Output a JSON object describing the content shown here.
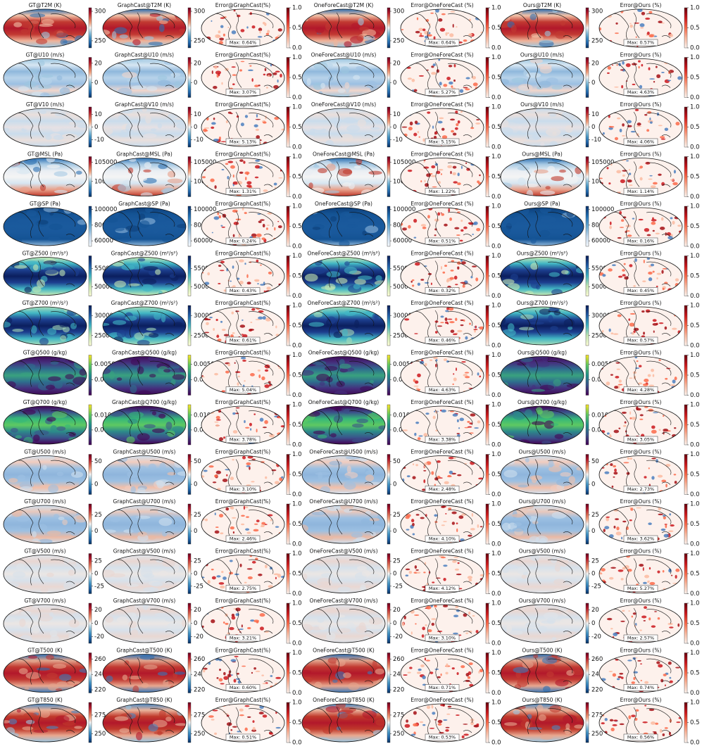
{
  "error_ticks": [
    {
      "value": 0,
      "label": "0.0"
    },
    0.5,
    {
      "value": 1,
      "label": "1.0"
    }
  ],
  "error_clim": [
    0,
    1
  ],
  "error_colormap": "Reds",
  "rows": [
    {
      "titles": [
        "GT@T2M (K)",
        "GraphCast@T2M (K)",
        "Error@GraphCast(%)",
        "OneForeCast@T2M (K)",
        "Error@OneForeCast (%)",
        "Ours@T2M (K)",
        "Error@Ours (%)"
      ],
      "colormap": "RdBu_r",
      "value_clim": [
        238,
        306
      ],
      "value_ticks": [
        250,
        300
      ],
      "max_errors": [
        "Max: 0.64%",
        "Max: 0.64%",
        "Max: 0.57%"
      ]
    },
    {
      "titles": [
        "GT@U10 (m/s)",
        "GraphCast@U10 (m/s)",
        "Error@GraphCast(%)",
        "OneForeCast@U10 (m/s)",
        "Error@OneForeCast (%)",
        "Ours@U10 (m/s)",
        "Error@Ours (%)"
      ],
      "colormap": "RdBu_r",
      "value_clim": [
        -15,
        26
      ],
      "value_ticks": [
        0,
        20
      ],
      "max_errors": [
        "Max: 3.07%",
        "Max: 5.27%",
        "Max: 4.63%"
      ]
    },
    {
      "titles": [
        "GT@V10 (m/s)",
        "GraphCast@V10 (m/s)",
        "Error@GraphCast(%)",
        "OneForeCast@V10 (m/s)",
        "Error@OneForeCast (%)",
        "Ours@V10 (m/s)",
        "Error@Ours (%)"
      ],
      "colormap": "RdBu_r",
      "value_clim": [
        -16,
        16
      ],
      "value_ticks": [
        -10,
        0,
        10
      ],
      "max_errors": [
        "Max: 5.13%",
        "Max: 5.15%",
        "Max: 4.06%"
      ]
    },
    {
      "titles": [
        "GT@MSL (Pa)",
        "GraphCast@MSL (Pa)",
        "Error@GraphCast(%)",
        "OneForeCast@MSL (Pa)",
        "Error@OneForeCast (%)",
        "Ours@MSL (Pa)",
        "Error@Ours (%)"
      ],
      "colormap": "RdBu_r",
      "value_clim": [
        96000,
        106500
      ],
      "value_ticks": [
        100000,
        105000
      ],
      "max_errors": [
        "Max: 1.31%",
        "Max: 1.22%",
        "Max: 1.14%"
      ]
    },
    {
      "titles": [
        "GT@SP (Pa)",
        "GraphCast@SP (Pa)",
        "Error@GraphCast(%)",
        "OneForeCast@SP (Pa)",
        "Error@OneForeCast (%)",
        "Ours@SP (Pa)",
        "Error@Ours (%)"
      ],
      "colormap": "Blues",
      "value_clim": [
        53000,
        104000
      ],
      "value_ticks": [
        60000,
        80000,
        100000
      ],
      "max_errors": [
        "Max: 0.24%",
        "Max: 0.51%",
        "Max: 0.16%"
      ]
    },
    {
      "titles": [
        "GT@Z500 (m²/s²)",
        "GraphCast@Z500 (m²/s²)",
        "Error@GraphCast(%)",
        "OneForeCast@Z500 (m²/s²)",
        "Error@OneForeCast (%)",
        "Ours@Z500 (m²/s²)",
        "Error@Ours (%)"
      ],
      "colormap": "YlGnBu",
      "value_clim": [
        47500,
        58500
      ],
      "value_ticks": [
        50000,
        55000
      ],
      "max_errors": [
        "Max: 0.43%",
        "Max: 0.32%",
        "Max: 0.45%"
      ]
    },
    {
      "titles": [
        "GT@Z700 (m²/s²)",
        "GraphCast@Z700 (m²/s²)",
        "Error@GraphCast(%)",
        "OneForeCast@Z700 (m²/s²)",
        "Error@OneForeCast (%)",
        "Ours@Z700 (m²/s²)",
        "Error@Ours (%)"
      ],
      "colormap": "YlGnBu",
      "value_clim": [
        22500,
        32500
      ],
      "value_ticks": [
        25000,
        30000
      ],
      "max_errors": [
        "Max: 0.61%",
        "Max: 0.46%",
        "Max: 0.57%"
      ]
    },
    {
      "titles": [
        "GT@Q500 (g/kg)",
        "GraphCast@Q500 (g/kg)",
        "Error@GraphCast(%)",
        "OneForeCast@Q500 (g/kg)",
        "Error@OneForeCast (%)",
        "Ours@Q500 (g/kg)",
        "Error@Ours (%)"
      ],
      "colormap": "viridis",
      "value_clim": [
        0,
        0.0065
      ],
      "value_ticks": [
        0.0025,
        {
          "value": 0.005,
          "label": "0.0050"
        }
      ],
      "max_errors": [
        "Max: 5.04%",
        "Max: 4.63%",
        "Max: 4.28%"
      ]
    },
    {
      "titles": [
        "GT@Q700 (g/kg)",
        "GraphCast@Q700 (g/kg)",
        "Error@GraphCast(%)",
        "OneForeCast@Q700 (g/kg)",
        "Error@OneForeCast (%)",
        "Ours@Q700 (g/kg)",
        "Error@Ours (%)"
      ],
      "colormap": "viridis",
      "value_clim": [
        0,
        0.0135
      ],
      "value_ticks": [
        0.005,
        {
          "value": 0.01,
          "label": "0.010"
        }
      ],
      "max_errors": [
        "Max: 3.78%",
        "Max: 3.38%",
        "Max: 3.05%"
      ]
    },
    {
      "titles": [
        "GT@U500 (m/s)",
        "GraphCast@U500 (m/s)",
        "Error@GraphCast(%)",
        "OneForeCast@U500 (m/s)",
        "Error@OneForeCast (%)",
        "Ours@U500 (m/s)",
        "Error@Ours (%)"
      ],
      "colormap": "RdBu_r",
      "value_clim": [
        -22,
        65
      ],
      "value_ticks": [
        0,
        50
      ],
      "max_errors": [
        "Max: 3.10%",
        "Max: 2.48%",
        "Max: 2.73%"
      ]
    },
    {
      "titles": [
        "GT@U700 (m/s)",
        "GraphCast@U700 (m/s)",
        "Error@GraphCast(%)",
        "OneForeCast@U700 (m/s)",
        "Error@OneForeCast (%)",
        "Ours@U700 (m/s)",
        "Error@Ours (%)"
      ],
      "colormap": "RdBu_r",
      "value_clim": [
        -20,
        42
      ],
      "value_ticks": [
        0,
        25
      ],
      "max_errors": [
        "Max: 2.46%",
        "Max: 4.10%",
        "Max: 3.62%"
      ]
    },
    {
      "titles": [
        "GT@V500 (m/s)",
        "GraphCast@V500 (m/s)",
        "Error@GraphCast(%)",
        "OneForeCast@V500 (m/s)",
        "Error@OneForeCast (%)",
        "Ours@V500 (m/s)",
        "Error@Ours (%)"
      ],
      "colormap": "RdBu_r",
      "value_clim": [
        -40,
        40
      ],
      "value_ticks": [
        -25,
        0,
        25
      ],
      "max_errors": [
        "Max: 2.75%",
        "Max: 4.12%",
        "Max: 5.27%"
      ]
    },
    {
      "titles": [
        "GT@V700 (m/s)",
        "GraphCast@V700 (m/s)",
        "Error@GraphCast(%)",
        "OneForeCast@V700 (m/s)",
        "Error@OneForeCast (%)",
        "Ours@V700 (m/s)",
        "Error@Ours (%)"
      ],
      "colormap": "RdBu_r",
      "value_clim": [
        -30,
        30
      ],
      "value_ticks": [
        -20,
        0,
        20
      ],
      "max_errors": [
        "Max: 3.21%",
        "Max: 3.10%",
        "Max: 2.57%"
      ]
    },
    {
      "titles": [
        "GT@T500 (K)",
        "GraphCast@T500 (K)",
        "Error@GraphCast(%)",
        "OneForeCast@T500 (K)",
        "Error@OneForeCast (%)",
        "Ours@T500 (K)",
        "Error@Ours (%)"
      ],
      "colormap": "RdBu_r",
      "value_clim": [
        216,
        268
      ],
      "value_ticks": [
        220,
        240,
        260
      ],
      "max_errors": [
        "Max: 0.60%",
        "Max: 0.71%",
        "Max: 0.74%"
      ]
    },
    {
      "titles": [
        "GT@T850 (K)",
        "GraphCast@T850 (K)",
        "Error@GraphCast(%)",
        "OneForeCast@T850 (K)",
        "Error@OneForeCast (%)",
        "Ours@T850 (K)",
        "Error@Ours (%)"
      ],
      "colormap": "RdBu_r",
      "value_clim": [
        238,
        292
      ],
      "value_ticks": [
        250,
        275
      ],
      "max_errors": [
        "Max: 0.51%",
        "Max: 0.53%",
        "Max: 0.56%"
      ]
    }
  ]
}
